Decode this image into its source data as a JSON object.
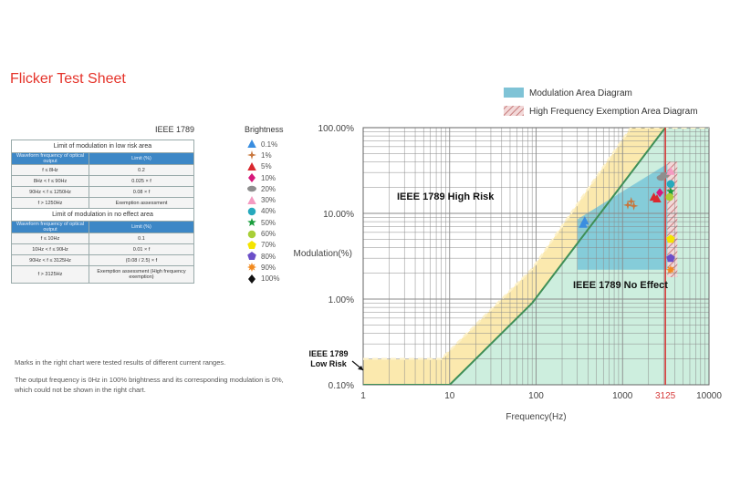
{
  "title": "Flicker Test Sheet",
  "standard": "IEEE 1789",
  "table": {
    "low_risk_title": "Limit of modulation in low risk area",
    "low_risk_header": [
      "Waveform frequency of optical output",
      "Limit (%)"
    ],
    "low_risk_rows": [
      [
        "f ≤ 8Hz",
        "0.2"
      ],
      [
        "8Hz < f ≤ 90Hz",
        "0.025 × f"
      ],
      [
        "90Hz < f ≤ 1250Hz",
        "0.08 × f"
      ],
      [
        "f > 1250Hz",
        "Exemption assessment"
      ]
    ],
    "no_effect_title": "Limit of modulation in no effect area",
    "no_effect_header": [
      "Waveform frequency of optical output",
      "Limit (%)"
    ],
    "no_effect_rows": [
      [
        "f ≤ 10Hz",
        "0.1"
      ],
      [
        "10Hz < f ≤ 90Hz",
        "0.01 × f"
      ],
      [
        "90Hz < f ≤ 3125Hz",
        "(0.08 / 2.5) × f"
      ],
      [
        "f > 3125Hz",
        "Exemption assessment (High frequency exemption)"
      ]
    ]
  },
  "brightness": {
    "title": "Brightness",
    "items": [
      {
        "label": "0.1%",
        "color": "#3a8ee0",
        "shape": "triangle"
      },
      {
        "label": "1%",
        "color": "#c8763c",
        "shape": "cross"
      },
      {
        "label": "5%",
        "color": "#d9282f",
        "shape": "triangle"
      },
      {
        "label": "10%",
        "color": "#d6187b",
        "shape": "diamond"
      },
      {
        "label": "20%",
        "color": "#8e8e8e",
        "shape": "ellipse"
      },
      {
        "label": "30%",
        "color": "#f49ac1",
        "shape": "triangle"
      },
      {
        "label": "40%",
        "color": "#27a9bd",
        "shape": "circle"
      },
      {
        "label": "50%",
        "color": "#1b9e3e",
        "shape": "star"
      },
      {
        "label": "60%",
        "color": "#a8cf38",
        "shape": "circle"
      },
      {
        "label": "70%",
        "color": "#f4e400",
        "shape": "pentagon"
      },
      {
        "label": "80%",
        "color": "#6b4fc8",
        "shape": "pentagon"
      },
      {
        "label": "90%",
        "color": "#f28a1f",
        "shape": "burst"
      },
      {
        "label": "100%",
        "color": "#111111",
        "shape": "diamond"
      }
    ]
  },
  "notes": {
    "line1": "Marks in the right chart were tested results of different current ranges.",
    "line2": "The output frequency is 0Hz in 100% brightness and its corresponding modulation is 0%, which could not be shown in the right chart."
  },
  "chart_data": {
    "type": "scatter",
    "xlabel": "Frequency(Hz)",
    "ylabel": "Modulation(%)",
    "x_scale": "log",
    "y_scale": "log",
    "xlim": [
      1,
      10000
    ],
    "ylim": [
      0.1,
      100
    ],
    "x_ticks": [
      {
        "value": 1,
        "label": "1"
      },
      {
        "value": 10,
        "label": "10"
      },
      {
        "value": 100,
        "label": "100"
      },
      {
        "value": 1000,
        "label": "1000"
      },
      {
        "value": 3125,
        "label": "3125"
      },
      {
        "value": 10000,
        "label": "10000"
      }
    ],
    "y_ticks": [
      {
        "value": 0.1,
        "label": "0.10%"
      },
      {
        "value": 1,
        "label": "1.00%"
      },
      {
        "value": 10,
        "label": "10.00%"
      },
      {
        "value": 100,
        "label": "100.00%"
      }
    ],
    "grid": true,
    "legend": [
      {
        "label": "Modulation Area Diagram",
        "color": "#7fc3d6"
      },
      {
        "label": "High Frequency Exemption Area Diagram",
        "color": "#e3a6a6"
      }
    ],
    "low_risk_boundary": [
      [
        1,
        0.2
      ],
      [
        8,
        0.2
      ],
      [
        90,
        2.25
      ],
      [
        1250,
        100
      ]
    ],
    "no_effect_boundary": [
      [
        1,
        0.1
      ],
      [
        10,
        0.1
      ],
      [
        90,
        0.9
      ],
      [
        3125,
        100
      ]
    ],
    "exemption_frequency": 3125,
    "annotations": {
      "high_risk": "IEEE 1789 High Risk",
      "no_effect": "IEEE 1789 No Effect",
      "low_risk": "IEEE 1789 Low Risk"
    },
    "series": [
      {
        "name": "0.1%",
        "points": [
          [
            350,
            7.5
          ],
          [
            365,
            8.2
          ]
        ]
      },
      {
        "name": "1%",
        "points": [
          [
            1150,
            12.5
          ],
          [
            1260,
            13.8
          ],
          [
            1350,
            12.2
          ]
        ]
      },
      {
        "name": "5%",
        "points": [
          [
            2300,
            15.5
          ],
          [
            2500,
            14.8
          ]
        ]
      },
      {
        "name": "10%",
        "points": [
          [
            2700,
            17.5
          ]
        ]
      },
      {
        "name": "20%",
        "points": [
          [
            2800,
            26
          ],
          [
            3050,
            28
          ]
        ]
      },
      {
        "name": "30%",
        "points": [
          [
            3600,
            31
          ]
        ]
      },
      {
        "name": "40%",
        "points": [
          [
            3600,
            22
          ]
        ]
      },
      {
        "name": "50%",
        "points": [
          [
            3600,
            18
          ]
        ]
      },
      {
        "name": "60%",
        "points": [
          [
            3500,
            15.5
          ]
        ]
      },
      {
        "name": "70%",
        "points": [
          [
            3600,
            5
          ]
        ]
      },
      {
        "name": "80%",
        "points": [
          [
            3600,
            3
          ]
        ]
      },
      {
        "name": "90%",
        "points": [
          [
            3600,
            2.2
          ]
        ]
      }
    ]
  }
}
